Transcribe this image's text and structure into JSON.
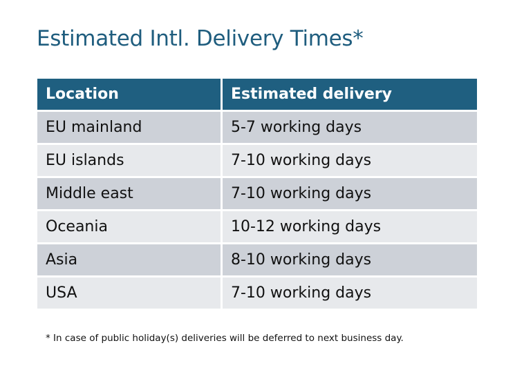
{
  "title": "Estimated Intl. Delivery Times*",
  "table": {
    "headers": [
      "Location",
      "Estimated delivery"
    ],
    "rows": [
      [
        "EU mainland",
        "5-7 working days"
      ],
      [
        "EU islands",
        "7-10 working days"
      ],
      [
        "Middle east",
        "7-10 working days"
      ],
      [
        "Oceania",
        "10-12 working days"
      ],
      [
        "Asia",
        "8-10 working days"
      ],
      [
        "USA",
        "7-10 working days"
      ]
    ]
  },
  "footnote": "* In case of public holiday(s) deliveries will be deferred to next business day.",
  "colors": {
    "header": "#1f5f80",
    "row_dark": "#cdd1d8",
    "row_light": "#e7e9ec"
  }
}
